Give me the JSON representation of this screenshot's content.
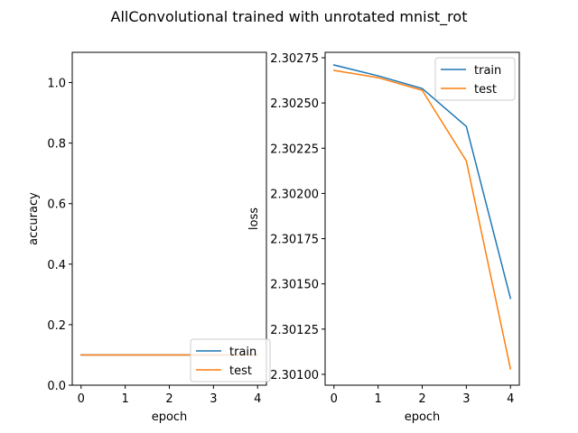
{
  "figure": {
    "title": "AllConvolutional trained with unrotated mnist_rot"
  },
  "chart_data": [
    {
      "type": "line",
      "xlabel": "epoch",
      "ylabel": "accuracy",
      "x": [
        0,
        1,
        2,
        3,
        4
      ],
      "xticks": [
        "0",
        "1",
        "2",
        "3",
        "4"
      ],
      "xlim": [
        -0.2,
        4.2
      ],
      "ylim": [
        0.0,
        1.1
      ],
      "yticks": [
        "0.0",
        "0.2",
        "0.4",
        "0.6",
        "0.8",
        "1.0"
      ],
      "grid": false,
      "legend_loc": "lower-right",
      "series": [
        {
          "name": "train",
          "color": "#1f77b4",
          "values": [
            0.1,
            0.1,
            0.1,
            0.1,
            0.1
          ]
        },
        {
          "name": "test",
          "color": "#ff7f0e",
          "values": [
            0.1,
            0.1,
            0.1,
            0.1,
            0.1
          ]
        }
      ]
    },
    {
      "type": "line",
      "xlabel": "epoch",
      "ylabel": "loss",
      "x": [
        0,
        1,
        2,
        3,
        4
      ],
      "xticks": [
        "0",
        "1",
        "2",
        "3",
        "4"
      ],
      "xlim": [
        -0.2,
        4.2
      ],
      "ylim": [
        2.30094,
        2.30278
      ],
      "yticks": [
        "2.30100",
        "2.30125",
        "2.30150",
        "2.30175",
        "2.30200",
        "2.30225",
        "2.30250",
        "2.30275"
      ],
      "grid": false,
      "legend_loc": "upper-right",
      "series": [
        {
          "name": "train",
          "color": "#1f77b4",
          "values": [
            2.30271,
            2.30265,
            2.30258,
            2.30237,
            2.30142
          ]
        },
        {
          "name": "test",
          "color": "#ff7f0e",
          "values": [
            2.30268,
            2.30264,
            2.30257,
            2.30218,
            2.30103
          ]
        }
      ]
    }
  ]
}
